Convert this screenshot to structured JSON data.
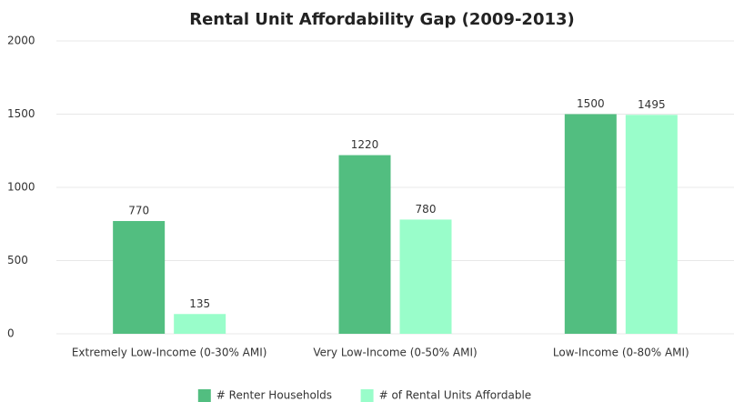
{
  "chart_data": {
    "type": "bar",
    "title": "Rental Unit Affordability Gap (2009-2013)",
    "categories": [
      "Extremely Low-Income (0-30% AMI)",
      "Very Low-Income (0-50% AMI)",
      "Low-Income (0-80% AMI)"
    ],
    "series": [
      {
        "name": "# Renter Households",
        "color": "#52be80",
        "values": [
          770,
          1220,
          1500
        ]
      },
      {
        "name": "# of Rental Units Affordable",
        "color": "#99fdca",
        "values": [
          135,
          780,
          1495
        ]
      }
    ],
    "ylim": [
      0,
      2000
    ],
    "yticks": [
      0,
      500,
      1000,
      1500,
      2000
    ],
    "grid": true,
    "legend": "bottom"
  }
}
